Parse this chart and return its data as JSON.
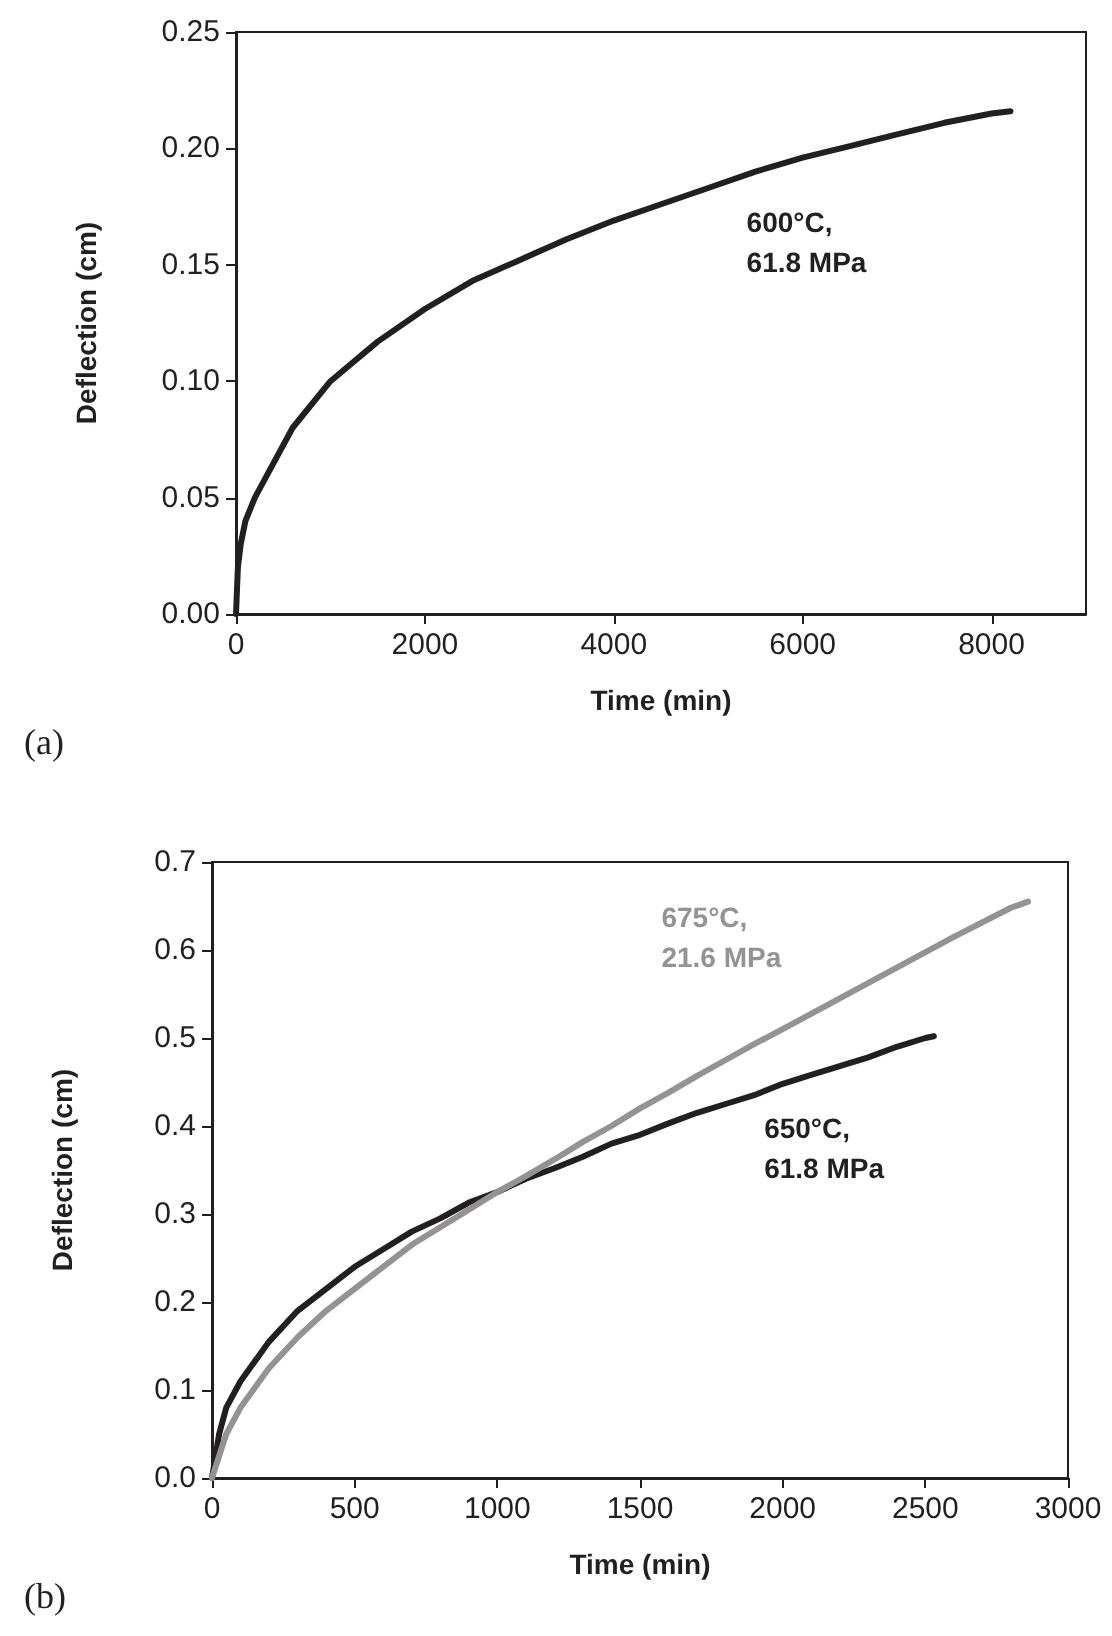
{
  "chart_data": [
    {
      "type": "line",
      "xlabel": "Time (min)",
      "ylabel": "Deflection (cm)",
      "annotations": [
        "(a)"
      ],
      "xlim": [
        0,
        9000
      ],
      "xticks": [
        0,
        2000,
        4000,
        6000,
        8000
      ],
      "ylim": [
        0,
        0.25
      ],
      "yticks": [
        {
          "value": 0,
          "label": "0.00"
        },
        {
          "value": 0.05,
          "label": "0.05"
        },
        {
          "value": 0.1,
          "label": "0.10"
        },
        {
          "value": 0.15,
          "label": "0.15"
        },
        {
          "value": 0.2,
          "label": "0.20"
        },
        {
          "value": 0.25,
          "label": "0.25"
        }
      ],
      "grid": false,
      "legend": false,
      "marker": "none",
      "line_style": "solid",
      "series": [
        {
          "name": "600°C,\n61.8 MPa",
          "color": "#231f20",
          "x": [
            0,
            20,
            50,
            100,
            200,
            400,
            600,
            1000,
            1500,
            2000,
            2500,
            3000,
            3500,
            4000,
            4500,
            5000,
            5500,
            6000,
            6500,
            7000,
            7500,
            8000,
            8200
          ],
          "values": [
            0,
            0.02,
            0.03,
            0.04,
            0.05,
            0.065,
            0.08,
            0.1,
            0.117,
            0.131,
            0.143,
            0.152,
            0.161,
            0.169,
            0.176,
            0.183,
            0.19,
            0.196,
            0.201,
            0.206,
            0.211,
            0.215,
            0.216
          ]
        }
      ]
    },
    {
      "type": "line",
      "xlabel": "Time (min)",
      "ylabel": "Deflection (cm)",
      "annotations": [
        "(b)"
      ],
      "xlim": [
        0,
        3000
      ],
      "xticks": [
        0,
        500,
        1000,
        1500,
        2000,
        2500,
        3000
      ],
      "ylim": [
        0,
        0.7
      ],
      "yticks": [
        {
          "value": 0,
          "label": "0.0"
        },
        {
          "value": 0.1,
          "label": "0.1"
        },
        {
          "value": 0.2,
          "label": "0.2"
        },
        {
          "value": 0.3,
          "label": "0.3"
        },
        {
          "value": 0.4,
          "label": "0.4"
        },
        {
          "value": 0.5,
          "label": "0.5"
        },
        {
          "value": 0.6,
          "label": "0.6"
        },
        {
          "value": 0.7,
          "label": "0.7"
        }
      ],
      "grid": false,
      "legend": false,
      "marker": "none",
      "line_style": "solid",
      "series": [
        {
          "name": "650°C,\n61.8 MPa",
          "color": "#231f20",
          "x": [
            0,
            25,
            50,
            100,
            200,
            300,
            400,
            500,
            600,
            700,
            800,
            900,
            1000,
            1100,
            1200,
            1300,
            1400,
            1500,
            1600,
            1700,
            1800,
            1900,
            2000,
            2100,
            2200,
            2300,
            2400,
            2500,
            2530
          ],
          "values": [
            0,
            0.05,
            0.08,
            0.11,
            0.155,
            0.19,
            0.215,
            0.24,
            0.26,
            0.28,
            0.295,
            0.313,
            0.325,
            0.34,
            0.352,
            0.365,
            0.38,
            0.39,
            0.403,
            0.415,
            0.425,
            0.435,
            0.448,
            0.458,
            0.468,
            0.478,
            0.49,
            0.5,
            0.502
          ]
        },
        {
          "name": "675°C,\n21.6 MPa",
          "color": "#939393",
          "x": [
            0,
            50,
            100,
            200,
            300,
            400,
            500,
            600,
            700,
            800,
            900,
            1000,
            1100,
            1200,
            1300,
            1400,
            1500,
            1600,
            1700,
            1800,
            1900,
            2000,
            2200,
            2400,
            2600,
            2800,
            2860
          ],
          "values": [
            0,
            0.05,
            0.08,
            0.125,
            0.16,
            0.19,
            0.215,
            0.24,
            0.265,
            0.285,
            0.305,
            0.325,
            0.343,
            0.362,
            0.382,
            0.4,
            0.42,
            0.438,
            0.457,
            0.475,
            0.493,
            0.51,
            0.545,
            0.58,
            0.615,
            0.648,
            0.655
          ]
        }
      ]
    }
  ]
}
